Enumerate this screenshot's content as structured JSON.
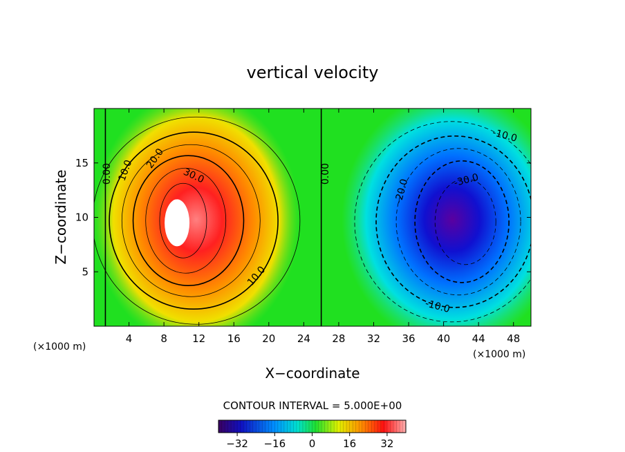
{
  "chart_data": {
    "type": "heatmap",
    "title": "vertical velocity",
    "xlabel": "X−coordinate",
    "ylabel": "Z−coordinate",
    "x_unit": "(×1000 m)",
    "y_unit": "(×1000 m)",
    "xlim": [
      0,
      50
    ],
    "ylim": [
      0,
      20
    ],
    "x_ticks": [
      4,
      8,
      12,
      16,
      20,
      24,
      28,
      32,
      36,
      40,
      44,
      48
    ],
    "y_ticks": [
      5,
      10,
      15
    ],
    "contour_interval_text": "CONTOUR INTERVAL = 5.000E+00",
    "contour_interval": 5,
    "colorbar": {
      "range": [
        -40,
        40
      ],
      "ticks": [
        -32,
        -16,
        0,
        16,
        32
      ],
      "tick_labels": [
        "−32",
        "−16",
        "0",
        "16",
        "32"
      ]
    },
    "extrema": [
      {
        "kind": "updraft",
        "x": 9.5,
        "z": 9.5,
        "value": 43
      },
      {
        "kind": "downdraft",
        "x": 43.5,
        "z": 9.0,
        "value": -40
      }
    ],
    "contour_labels": [
      {
        "text": "0.00",
        "x": 1.5,
        "z": 14.0,
        "rot": -90
      },
      {
        "text": "10.0",
        "x": 3.6,
        "z": 14.3,
        "rot": -70
      },
      {
        "text": "20.0",
        "x": 7.0,
        "z": 15.4,
        "rot": -55
      },
      {
        "text": "30.0",
        "x": 11.4,
        "z": 13.8,
        "rot": 25
      },
      {
        "text": "10.0",
        "x": 18.6,
        "z": 4.6,
        "rot": -50
      },
      {
        "text": "0.00",
        "x": 26.5,
        "z": 14.0,
        "rot": -90
      },
      {
        "text": "-20.0",
        "x": 35.2,
        "z": 12.4,
        "rot": -75
      },
      {
        "text": "-30.0",
        "x": 42.6,
        "z": 13.4,
        "rot": -15
      },
      {
        "text": "-10.0",
        "x": 47.0,
        "z": 17.5,
        "rot": 15
      },
      {
        "text": "-10.0",
        "x": 39.3,
        "z": 1.8,
        "rot": 15
      }
    ]
  }
}
